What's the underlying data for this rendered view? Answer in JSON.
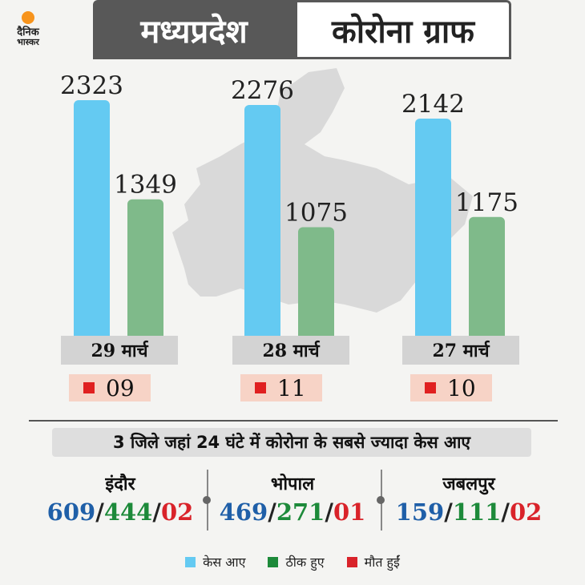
{
  "header": {
    "left_title": "मध्यप्रदेश",
    "right_title": "कोरोना ग्राफ"
  },
  "logo": {
    "line1": "दैनिक",
    "line2": "भास्कर",
    "sun_color": "#f7941d"
  },
  "colors": {
    "cases": "#64caf2",
    "recovered": "#7fba8a",
    "deaths": "#e02020",
    "blue_text": "#1f5fa8",
    "green_text": "#1d8a3a",
    "red_text": "#d9232a"
  },
  "chart_data": {
    "type": "bar",
    "categories": [
      "29 मार्च",
      "28 मार्च",
      "27 मार्च"
    ],
    "series": [
      {
        "name": "केस आए",
        "values": [
          2323,
          2276,
          2142
        ]
      },
      {
        "name": "ठीक हुए",
        "values": [
          1349,
          1075,
          1175
        ]
      }
    ],
    "deaths": [
      "09",
      "11",
      "10"
    ],
    "ylim": [
      0,
      2400
    ],
    "legend": [
      "केस आए",
      "ठीक हुए",
      "मौत हुईं"
    ],
    "grid": false
  },
  "districts": {
    "heading": "3 जिले जहां 24 घंटे में कोरोना के सबसे ज्यादा केस आए",
    "items": [
      {
        "name": "इंदौर",
        "cases": "609",
        "recovered": "444",
        "deaths": "02"
      },
      {
        "name": "भोपाल",
        "cases": "469",
        "recovered": "271",
        "deaths": "01"
      },
      {
        "name": "जबलपुर",
        "cases": "159",
        "recovered": "111",
        "deaths": "02"
      }
    ]
  },
  "legend_items": [
    {
      "label": "केस आए",
      "color": "#64caf2"
    },
    {
      "label": "ठीक हुए",
      "color": "#1d8a3a"
    },
    {
      "label": "मौत हुईं",
      "color": "#d9232a"
    }
  ]
}
